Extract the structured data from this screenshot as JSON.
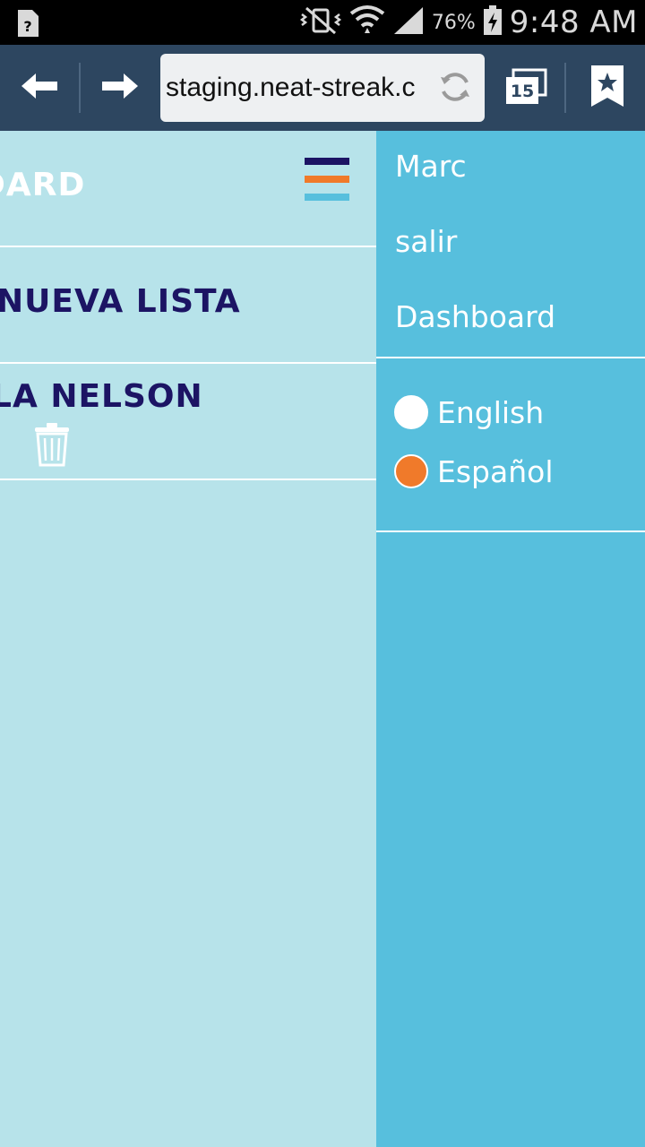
{
  "status_bar": {
    "battery_pct": "76%",
    "time": "9:48 AM",
    "icons": [
      "unknown-file-icon",
      "vibrate-mute-icon",
      "wifi-icon",
      "cell-signal-icon",
      "battery-charging-icon"
    ]
  },
  "browser": {
    "url": "staging.neat-streak.c",
    "tab_count": "15",
    "icons": [
      "back-arrow-icon",
      "forward-arrow-icon",
      "reload-icon",
      "tabs-icon",
      "bookmark-star-icon"
    ]
  },
  "main": {
    "dashboard_title": "DARD",
    "new_list_label": "NUEVA LISTA",
    "list_item_label": "LA NELSON",
    "colors": {
      "navy": "#1c1464",
      "orange": "#f07a2a",
      "light_blue": "#57bfdd",
      "panel_bg": "#b7e3ea"
    }
  },
  "menu": {
    "user_name": "Marc",
    "logout_label": "salir",
    "dashboard_label": "Dashboard",
    "languages": [
      {
        "label": "English",
        "selected": false
      },
      {
        "label": "Español",
        "selected": true
      }
    ],
    "colors": {
      "bg": "#57bfdd",
      "selected": "#f07a2a"
    }
  }
}
